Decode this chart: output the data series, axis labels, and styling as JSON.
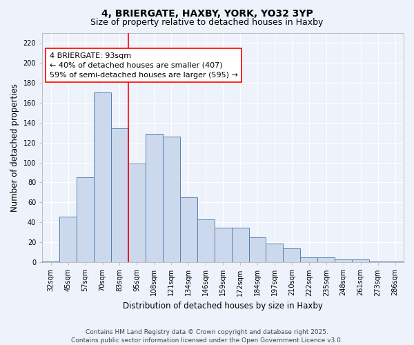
{
  "title_line1": "4, BRIERGATE, HAXBY, YORK, YO32 3YP",
  "title_line2": "Size of property relative to detached houses in Haxby",
  "xlabel": "Distribution of detached houses by size in Haxby",
  "ylabel": "Number of detached properties",
  "categories": [
    "32sqm",
    "45sqm",
    "57sqm",
    "70sqm",
    "83sqm",
    "95sqm",
    "108sqm",
    "121sqm",
    "134sqm",
    "146sqm",
    "159sqm",
    "172sqm",
    "184sqm",
    "197sqm",
    "210sqm",
    "222sqm",
    "235sqm",
    "248sqm",
    "261sqm",
    "273sqm",
    "286sqm"
  ],
  "values": [
    1,
    46,
    85,
    170,
    134,
    99,
    129,
    126,
    65,
    43,
    35,
    35,
    25,
    19,
    14,
    5,
    5,
    3,
    3,
    1,
    1
  ],
  "bar_color": "#ccd9ed",
  "bar_edge_color": "#5580b0",
  "vline_color": "red",
  "vline_x": 4.5,
  "annotation_text": "4 BRIERGATE: 93sqm\n← 40% of detached houses are smaller (407)\n59% of semi-detached houses are larger (595) →",
  "annotation_box_color": "white",
  "annotation_box_edge": "red",
  "ylim": [
    0,
    230
  ],
  "yticks": [
    0,
    20,
    40,
    60,
    80,
    100,
    120,
    140,
    160,
    180,
    200,
    220
  ],
  "footer_line1": "Contains HM Land Registry data © Crown copyright and database right 2025.",
  "footer_line2": "Contains public sector information licensed under the Open Government Licence v3.0.",
  "background_color": "#eef2fa",
  "plot_bg_color": "#eef2fa",
  "grid_color": "#ffffff",
  "title_fontsize": 10,
  "subtitle_fontsize": 9,
  "axis_label_fontsize": 8.5,
  "tick_fontsize": 7,
  "annotation_fontsize": 8,
  "footer_fontsize": 6.5
}
